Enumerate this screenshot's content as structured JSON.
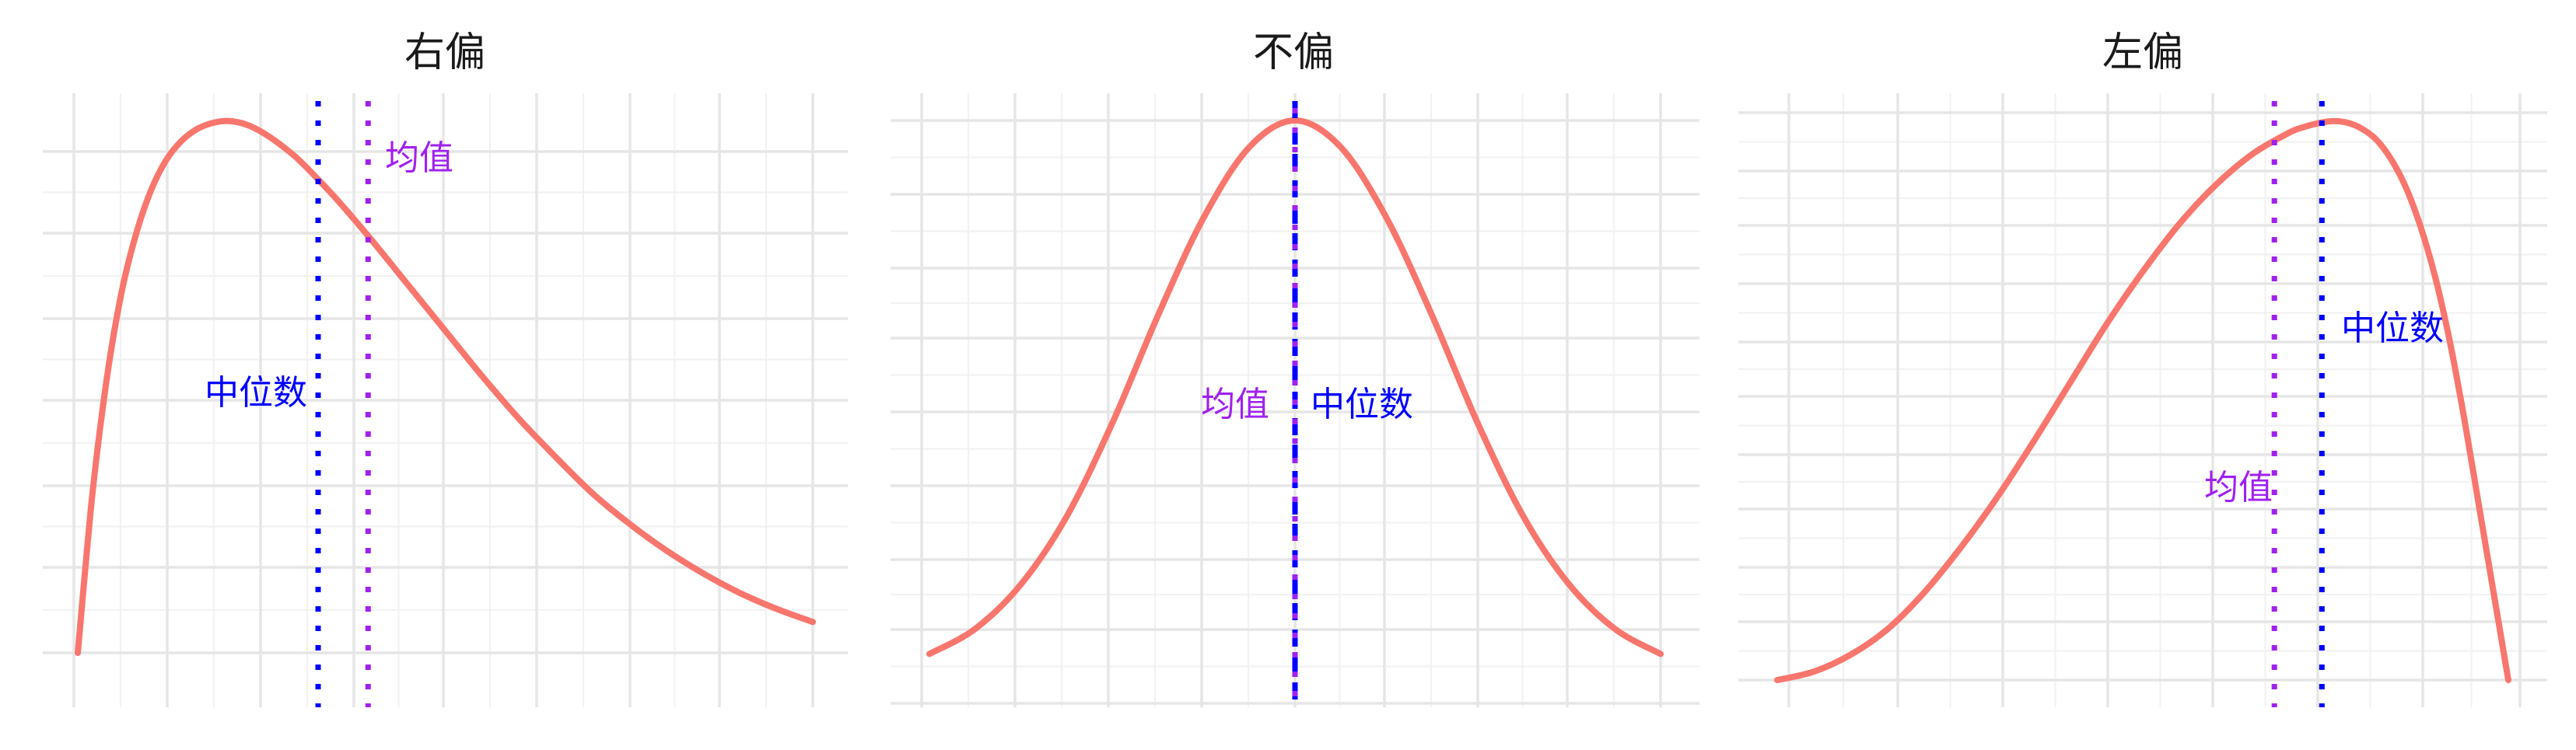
{
  "colors": {
    "curve": "#F8766D",
    "median": "#0000FF",
    "mean": "#A020F0",
    "grid_major": "#E6E6E6",
    "grid_minor": "#F2F2F2",
    "background": "#FFFFFF"
  },
  "chart_data": [
    {
      "type": "line",
      "title": "右偏",
      "xlim": [
        0,
        10
      ],
      "ylim": [
        0,
        100
      ],
      "series": [
        {
          "x": [
            0,
            0.2,
            0.4,
            0.6,
            0.8,
            1.0,
            1.2,
            1.4,
            1.6,
            1.8,
            2.0,
            2.2,
            2.4,
            2.6,
            2.8,
            3.0,
            3.3,
            3.6,
            4.0,
            4.5,
            5.0,
            5.5,
            6.0,
            6.5,
            7.0,
            7.5,
            8.0,
            8.5,
            9.0,
            9.5,
            10.0
          ],
          "y": [
            0,
            30,
            52,
            68,
            79,
            87,
            92.5,
            96,
            98.2,
            99.4,
            99.9,
            99.6,
            98.6,
            97.0,
            95.0,
            92.7,
            88.5,
            84.0,
            77.5,
            69.0,
            60.5,
            52.0,
            44.0,
            36.8,
            30.0,
            24.3,
            19.3,
            15.0,
            11.3,
            8.3,
            5.8
          ]
        }
      ],
      "reference_lines": [
        {
          "label": "中位数",
          "x": 3.27,
          "role": "median"
        },
        {
          "label": "均值",
          "x": 3.95,
          "role": "mean"
        }
      ]
    },
    {
      "type": "line",
      "title": "不偏",
      "xlim": [
        -4,
        4
      ],
      "ylim": [
        0,
        100
      ],
      "series": [
        {
          "x": [
            -4.0,
            -3.5,
            -3.0,
            -2.5,
            -2.0,
            -1.5,
            -1.0,
            -0.5,
            0,
            0.5,
            1.0,
            1.5,
            2.0,
            2.5,
            3.0,
            3.5,
            4.0
          ],
          "y": [
            4.0,
            8.5,
            16.5,
            28.7,
            45.5,
            64.9,
            82.5,
            95.2,
            100,
            95.2,
            82.5,
            64.9,
            45.5,
            28.7,
            16.5,
            8.5,
            4.0
          ]
        }
      ],
      "reference_lines": [
        {
          "label": "中位数",
          "x": 0,
          "role": "median"
        },
        {
          "label": "均值",
          "x": 0,
          "role": "mean"
        }
      ]
    },
    {
      "type": "line",
      "title": "左偏",
      "xlim": [
        0,
        10
      ],
      "ylim": [
        0,
        100
      ],
      "series": [
        {
          "x": [
            0,
            0.5,
            1.0,
            1.5,
            2.0,
            2.5,
            3.0,
            3.5,
            4.0,
            4.5,
            5.0,
            5.5,
            6.0,
            6.5,
            7.0,
            7.2,
            7.4,
            7.6,
            7.8,
            8.0,
            8.2,
            8.4,
            8.6,
            8.8,
            9.0,
            9.2,
            9.4,
            9.6,
            9.8,
            10.0
          ],
          "y": [
            0,
            1.5,
            4.5,
            9.0,
            15.5,
            23.5,
            32.5,
            42.5,
            53.0,
            63.5,
            73.0,
            81.5,
            88.5,
            94.0,
            97.8,
            98.8,
            99.5,
            99.9,
            99.6,
            98.5,
            96.5,
            93.0,
            88.0,
            81.0,
            72.0,
            60.5,
            46.5,
            31.0,
            15.5,
            0
          ]
        }
      ],
      "reference_lines": [
        {
          "label": "中位数",
          "x": 7.45,
          "role": "median"
        },
        {
          "label": "均值",
          "x": 6.8,
          "role": "mean"
        }
      ]
    }
  ]
}
